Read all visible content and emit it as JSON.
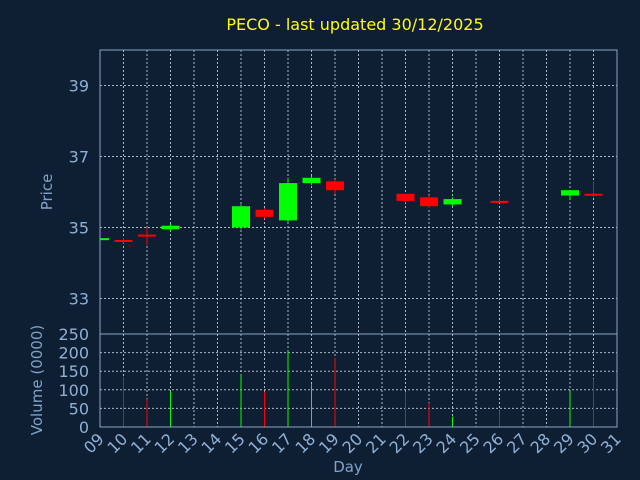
{
  "chart_data": [
    {
      "type": "candlestick",
      "title": "PECO - last updated 30/12/2025",
      "ylabel": "Price",
      "ylim": [
        32,
        40
      ],
      "yticks": [
        33,
        35,
        37,
        39
      ],
      "grid": true,
      "colors": {
        "up": "#00ff00",
        "down": "#ff0000",
        "background": "#0f1f33"
      },
      "candles": [
        {
          "day": 9,
          "open": 34.65,
          "high": 34.75,
          "low": 34.6,
          "close": 34.7
        },
        {
          "day": 10,
          "open": 34.65,
          "high": 34.7,
          "low": 34.55,
          "close": 34.6
        },
        {
          "day": 11,
          "open": 34.8,
          "high": 35.0,
          "low": 34.5,
          "close": 34.75
        },
        {
          "day": 12,
          "open": 34.95,
          "high": 35.1,
          "low": 34.9,
          "close": 35.05
        },
        {
          "day": 15,
          "open": 35.0,
          "high": 35.65,
          "low": 34.95,
          "close": 35.6
        },
        {
          "day": 16,
          "open": 35.5,
          "high": 35.55,
          "low": 35.25,
          "close": 35.3
        },
        {
          "day": 17,
          "open": 35.2,
          "high": 36.4,
          "low": 35.15,
          "close": 36.25
        },
        {
          "day": 18,
          "open": 36.25,
          "high": 36.45,
          "low": 36.2,
          "close": 36.4
        },
        {
          "day": 19,
          "open": 36.3,
          "high": 36.35,
          "low": 35.95,
          "close": 36.05
        },
        {
          "day": 22,
          "open": 35.95,
          "high": 35.95,
          "low": 35.7,
          "close": 35.75
        },
        {
          "day": 23,
          "open": 35.85,
          "high": 35.9,
          "low": 35.55,
          "close": 35.6
        },
        {
          "day": 24,
          "open": 35.65,
          "high": 35.85,
          "low": 35.6,
          "close": 35.8
        },
        {
          "day": 26,
          "open": 35.75,
          "high": 35.85,
          "low": 35.7,
          "close": 35.7
        },
        {
          "day": 29,
          "open": 35.9,
          "high": 36.05,
          "low": 35.8,
          "close": 36.05
        },
        {
          "day": 30,
          "open": 35.95,
          "high": 36.3,
          "low": 35.85,
          "close": 35.9
        }
      ]
    },
    {
      "type": "bar",
      "ylabel": "Volume (0000)",
      "xlabel": "Day",
      "ylim": [
        0,
        250
      ],
      "yticks": [
        0,
        50,
        100,
        150,
        200,
        250
      ],
      "xlim": [
        9,
        31
      ],
      "xticks": [
        "09",
        "10",
        "11",
        "12",
        "13",
        "14",
        "15",
        "16",
        "17",
        "18",
        "19",
        "20",
        "21",
        "22",
        "23",
        "24",
        "25",
        "26",
        "27",
        "28",
        "29",
        "30",
        "31"
      ],
      "grid": true,
      "volumes": [
        {
          "day": 10,
          "value": 135,
          "direction": "down"
        },
        {
          "day": 11,
          "value": 75,
          "direction": "down"
        },
        {
          "day": 12,
          "value": 95,
          "direction": "up"
        },
        {
          "day": 15,
          "value": 140,
          "direction": "up"
        },
        {
          "day": 16,
          "value": 95,
          "direction": "down"
        },
        {
          "day": 17,
          "value": 205,
          "direction": "up"
        },
        {
          "day": 18,
          "value": 115,
          "direction": "up"
        },
        {
          "day": 19,
          "value": 185,
          "direction": "down"
        },
        {
          "day": 22,
          "value": 95,
          "direction": "down"
        },
        {
          "day": 23,
          "value": 65,
          "direction": "down"
        },
        {
          "day": 24,
          "value": 28,
          "direction": "up"
        },
        {
          "day": 26,
          "value": 45,
          "direction": "down"
        },
        {
          "day": 29,
          "value": 95,
          "direction": "up"
        },
        {
          "day": 30,
          "value": 130,
          "direction": "down"
        }
      ]
    }
  ]
}
